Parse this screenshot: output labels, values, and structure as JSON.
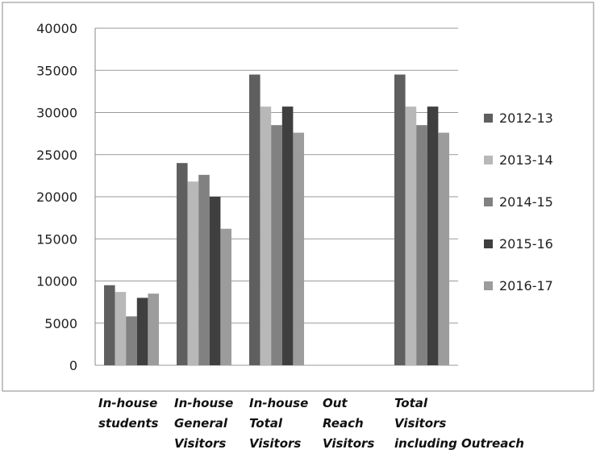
{
  "chart_data": {
    "type": "bar",
    "title": "",
    "xlabel": "",
    "ylabel": "",
    "ylim": [
      0,
      40000
    ],
    "yticks": [
      0,
      5000,
      10000,
      15000,
      20000,
      25000,
      30000,
      35000,
      40000
    ],
    "grid": true,
    "legend_position": "right",
    "categories": [
      [
        "In-house",
        "students"
      ],
      [
        "In-house",
        "General",
        "Visitors"
      ],
      [
        "In-house",
        "Total",
        "Visitors"
      ],
      [
        "Out",
        "Reach",
        "Visitors"
      ],
      [
        "Total",
        "Visitors",
        "including Outreach"
      ]
    ],
    "series": [
      {
        "name": "2012-13",
        "color": "#5f5f5f",
        "values": [
          9500,
          24000,
          34500,
          null,
          34500
        ]
      },
      {
        "name": "2013-14",
        "color": "#b8b8b8",
        "values": [
          8700,
          21800,
          30700,
          null,
          30700
        ]
      },
      {
        "name": "2014-15",
        "color": "#818181",
        "values": [
          5800,
          22600,
          28500,
          null,
          28500
        ]
      },
      {
        "name": "2015-16",
        "color": "#3f3f3f",
        "values": [
          8000,
          20000,
          30700,
          null,
          30700
        ]
      },
      {
        "name": "2016-17",
        "color": "#9c9c9c",
        "values": [
          8500,
          16200,
          27600,
          null,
          27600
        ]
      }
    ]
  }
}
